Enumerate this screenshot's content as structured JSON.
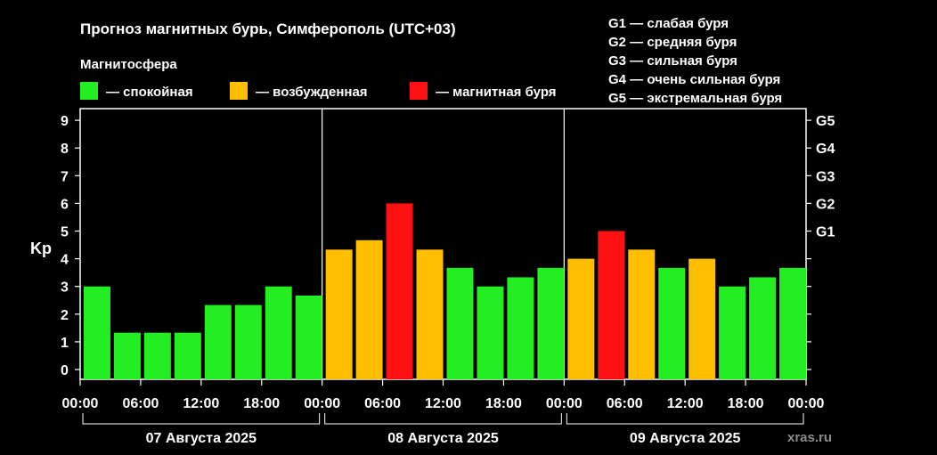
{
  "title": "Прогноз магнитных бурь, Симферополь (UTC+03)",
  "legend": {
    "heading": "Магнитосфера",
    "items": [
      {
        "color": "#22ee22",
        "label": "— спокойная"
      },
      {
        "color": "#ffbf00",
        "label": "— возбужденная"
      },
      {
        "color": "#ff1111",
        "label": "— магнитная буря"
      }
    ]
  },
  "g_scale": [
    "G1 — слабая буря",
    "G2 — средняя буря",
    "G3 — сильная буря",
    "G4 — очень сильная буря",
    "G5 — экстремальная буря"
  ],
  "watermark": "xras.ru",
  "chart_data": {
    "type": "bar",
    "ylabel": "Kp",
    "ylim": [
      0,
      9
    ],
    "y_ticks": [
      "0",
      "1",
      "2",
      "3",
      "4",
      "5",
      "6",
      "7",
      "8",
      "9"
    ],
    "right_ticks": [
      {
        "kp": 5,
        "label": "G1"
      },
      {
        "kp": 6,
        "label": "G2"
      },
      {
        "kp": 7,
        "label": "G3"
      },
      {
        "kp": 8,
        "label": "G4"
      },
      {
        "kp": 9,
        "label": "G5"
      }
    ],
    "x_tick_labels": [
      "00:00",
      "06:00",
      "12:00",
      "18:00",
      "00:00",
      "06:00",
      "12:00",
      "18:00",
      "00:00",
      "06:00",
      "12:00",
      "18:00",
      "00:00"
    ],
    "days": [
      "07 Августа 2025",
      "08 Августа 2025",
      "09 Августа 2025"
    ],
    "values": [
      3,
      1.33,
      1.33,
      1.33,
      2.33,
      2.33,
      3,
      2.67,
      4.33,
      4.67,
      6,
      4.33,
      3.67,
      3,
      3.33,
      3.67,
      4,
      5,
      4.33,
      3.67,
      4,
      3,
      3.33,
      3.67
    ],
    "colors": {
      "quiet": "#22ee22",
      "active": "#ffbf00",
      "storm": "#ff1111"
    },
    "thresholds": {
      "active": 4,
      "storm": 5
    },
    "grid": "day separators"
  }
}
